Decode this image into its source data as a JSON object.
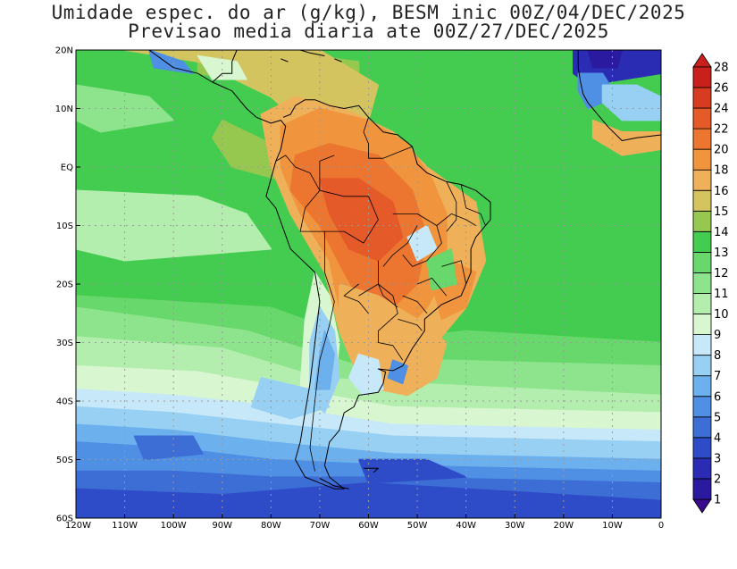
{
  "title_line1": "Umidade espec. do ar (g/kg), BESM inic 00Z/04/DEC/2025",
  "title_line2": "Previsao media diaria ate 00Z/27/DEC/2025",
  "lat_ticks": [
    {
      "value": 20,
      "label": "20N"
    },
    {
      "value": 10,
      "label": "10N"
    },
    {
      "value": 0,
      "label": "EQ"
    },
    {
      "value": -10,
      "label": "10S"
    },
    {
      "value": -20,
      "label": "20S"
    },
    {
      "value": -30,
      "label": "30S"
    },
    {
      "value": -40,
      "label": "40S"
    },
    {
      "value": -50,
      "label": "50S"
    },
    {
      "value": -60,
      "label": "60S"
    }
  ],
  "lon_ticks": [
    {
      "value": -120,
      "label": "120W"
    },
    {
      "value": -110,
      "label": "110W"
    },
    {
      "value": -100,
      "label": "100W"
    },
    {
      "value": -90,
      "label": "90W"
    },
    {
      "value": -80,
      "label": "80W"
    },
    {
      "value": -70,
      "label": "70W"
    },
    {
      "value": -60,
      "label": "60W"
    },
    {
      "value": -50,
      "label": "50W"
    },
    {
      "value": -40,
      "label": "40W"
    },
    {
      "value": -30,
      "label": "30W"
    },
    {
      "value": -20,
      "label": "20W"
    },
    {
      "value": -10,
      "label": "10W"
    },
    {
      "value": 0,
      "label": "0"
    }
  ],
  "colorbar": [
    {
      "label": "1",
      "color": "#3a0a8c"
    },
    {
      "label": "2",
      "color": "#2a1aa0"
    },
    {
      "label": "3",
      "color": "#2a2db4"
    },
    {
      "label": "4",
      "color": "#2f4cc8"
    },
    {
      "label": "5",
      "color": "#3c6ed6"
    },
    {
      "label": "6",
      "color": "#4f8fe4"
    },
    {
      "label": "7",
      "color": "#6cb0ee"
    },
    {
      "label": "8",
      "color": "#98d0f4"
    },
    {
      "label": "9",
      "color": "#c6e8f8"
    },
    {
      "label": "10",
      "color": "#d8f6d0"
    },
    {
      "label": "11",
      "color": "#b4eeae"
    },
    {
      "label": "12",
      "color": "#8ee48c"
    },
    {
      "label": "13",
      "color": "#68d86c"
    },
    {
      "label": "14",
      "color": "#44cc50"
    },
    {
      "label": "15",
      "color": "#96c850"
    },
    {
      "label": "16",
      "color": "#d4c460"
    },
    {
      "label": "18",
      "color": "#eeb058"
    },
    {
      "label": "20",
      "color": "#f0943e"
    },
    {
      "label": "22",
      "color": "#ec7630"
    },
    {
      "label": "24",
      "color": "#e45a28"
    },
    {
      "label": "26",
      "color": "#d83c20"
    },
    {
      "label": "28",
      "color": "#c8201c"
    }
  ],
  "colors": {
    "grid": "#9a9a9a",
    "coast": "#000000"
  }
}
